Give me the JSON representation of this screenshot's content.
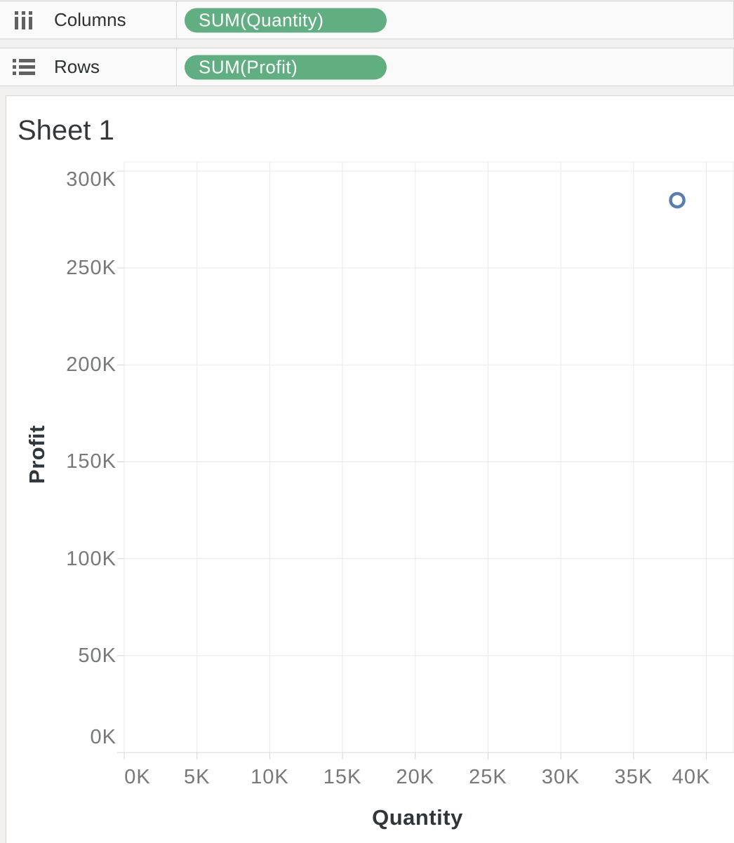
{
  "shelves": {
    "columns": {
      "label": "Columns",
      "pill": "SUM(Quantity)"
    },
    "rows": {
      "label": "Rows",
      "pill": "SUM(Profit)"
    }
  },
  "sheet": {
    "title": "Sheet 1"
  },
  "colors": {
    "pill_green": "#60ae81",
    "point_blue": "#5a7db0",
    "gridline": "#e9e9e9",
    "pane_border": "#ececec",
    "axis_line": "#d9d9d9",
    "tick_mark": "#d4d4d4",
    "tick_label": "#76787a",
    "axis_title": "#30373c",
    "icon_gray": "#616161"
  },
  "chart_data": {
    "type": "scatter",
    "title": "Sheet 1",
    "xlabel": "Quantity",
    "ylabel": "Profit",
    "x_ticks": [
      {
        "v": 0,
        "label": "0K"
      },
      {
        "v": 5000,
        "label": "5K"
      },
      {
        "v": 10000,
        "label": "10K"
      },
      {
        "v": 15000,
        "label": "15K"
      },
      {
        "v": 20000,
        "label": "20K"
      },
      {
        "v": 25000,
        "label": "25K"
      },
      {
        "v": 30000,
        "label": "30K"
      },
      {
        "v": 35000,
        "label": "35K"
      },
      {
        "v": 40000,
        "label": "40K"
      }
    ],
    "y_ticks": [
      {
        "v": 0,
        "label": "0K"
      },
      {
        "v": 50000,
        "label": "50K"
      },
      {
        "v": 100000,
        "label": "100K"
      },
      {
        "v": 150000,
        "label": "150K"
      },
      {
        "v": 200000,
        "label": "200K"
      },
      {
        "v": 250000,
        "label": "250K"
      },
      {
        "v": 300000,
        "label": "300K"
      }
    ],
    "xlim": [
      0,
      41900
    ],
    "ylim": [
      0,
      304700
    ],
    "grid": true,
    "legend": false,
    "marker": "open-circle",
    "points": [
      {
        "x": 38000,
        "y": 285000
      }
    ]
  }
}
